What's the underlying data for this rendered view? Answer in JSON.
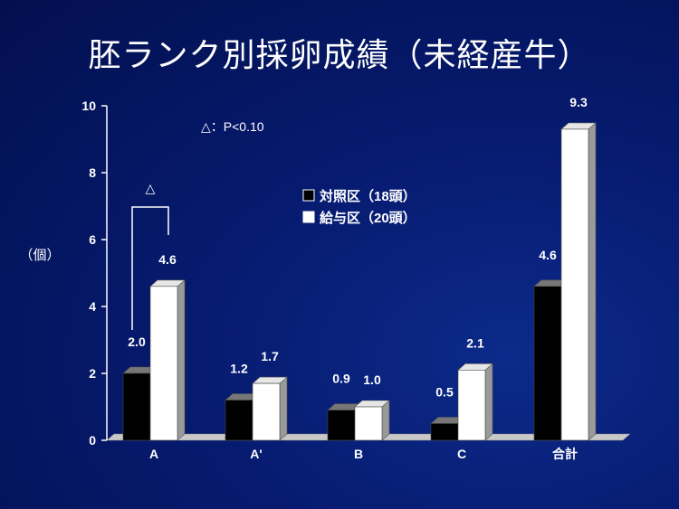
{
  "title": "胚ランク別採卵成績（未経産牛）",
  "ylabel": "（個）",
  "annotation_note": "△：P<0.10",
  "significance_marker": "△",
  "legend": {
    "items": [
      "対照区（18頭）",
      "給与区（20頭）"
    ]
  },
  "chart_data": {
    "type": "bar",
    "categories": [
      "A",
      "A'",
      "B",
      "C",
      "合計"
    ],
    "series": [
      {
        "name": "対照区（18頭）",
        "values": [
          2.0,
          1.2,
          0.9,
          0.5,
          4.6
        ],
        "color": "#000000"
      },
      {
        "name": "給与区（20頭）",
        "values": [
          4.6,
          1.7,
          1.0,
          2.1,
          9.3
        ],
        "color": "#ffffff"
      }
    ],
    "data_labels": [
      [
        "2.0",
        "1.2",
        "0.9",
        "0.5",
        "4.6"
      ],
      [
        "4.6",
        "1.7",
        "1.0",
        "2.1",
        "9.3"
      ]
    ],
    "yticks": [
      "0",
      "2",
      "4",
      "6",
      "8",
      "10"
    ],
    "ylim": [
      0,
      10
    ],
    "xlabel": "",
    "ylabel": "（個）",
    "grid": false,
    "legend_position": "top-center"
  }
}
